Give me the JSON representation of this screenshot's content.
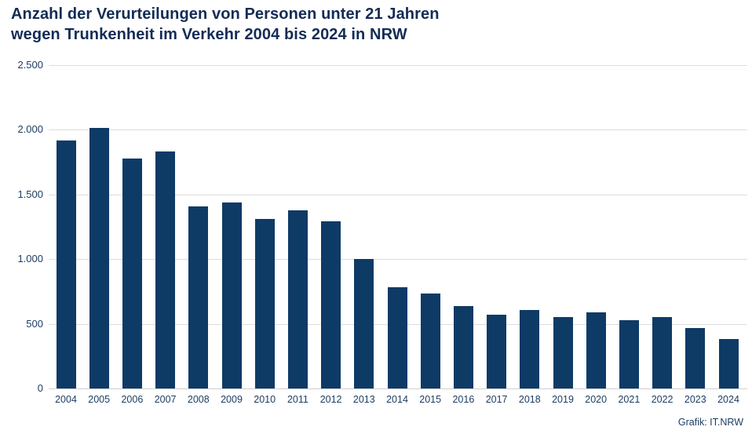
{
  "title": {
    "line1": "Anzahl der Verurteilungen von Personen unter 21 Jahren",
    "line2": "wegen Trunkenheit im Verkehr 2004 bis 2024 in NRW"
  },
  "footer": {
    "credit": "Grafik: IT.NRW"
  },
  "colors": {
    "bar": "#0e3a66",
    "title": "#132c56",
    "axis_text": "#1d3d63",
    "gridline": "#dcdcdc",
    "background": "#ffffff"
  },
  "chart_data": {
    "type": "bar",
    "title": "Anzahl der Verurteilungen von Personen unter 21 Jahren wegen Trunkenheit im Verkehr 2004 bis 2024 in NRW",
    "categories": [
      "2004",
      "2005",
      "2006",
      "2007",
      "2008",
      "2009",
      "2010",
      "2011",
      "2012",
      "2013",
      "2014",
      "2015",
      "2016",
      "2017",
      "2018",
      "2019",
      "2020",
      "2021",
      "2022",
      "2023",
      "2024"
    ],
    "values": [
      1920,
      2015,
      1775,
      1835,
      1405,
      1440,
      1310,
      1375,
      1295,
      1000,
      785,
      735,
      640,
      570,
      605,
      555,
      590,
      525,
      555,
      470,
      380
    ],
    "xlabel": "",
    "ylabel": "",
    "ylim": [
      0,
      2500
    ],
    "yticks": [
      0,
      500,
      1000,
      1500,
      2000,
      2500
    ],
    "ytick_labels": [
      "0",
      "500",
      "1.000",
      "1.500",
      "2.000",
      "2.500"
    ],
    "grid": true,
    "legend": false,
    "source_credit": "Grafik: IT.NRW"
  }
}
